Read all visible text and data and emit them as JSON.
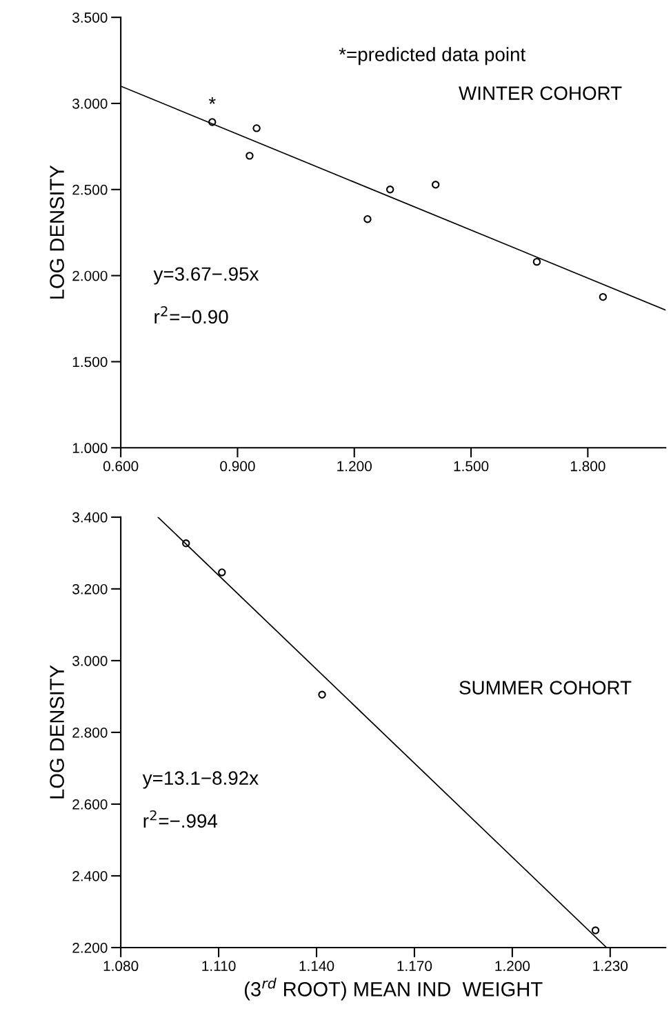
{
  "chart_data": [
    {
      "type": "scatter",
      "ylabel": "LOG DENSITY",
      "xlim": [
        0.6,
        2.0
      ],
      "ylim": [
        1.0,
        3.5
      ],
      "xticks": [
        {
          "value": 0.6,
          "label": "0.600"
        },
        {
          "value": 0.9,
          "label": "0.900"
        },
        {
          "value": 1.2,
          "label": "1.200"
        },
        {
          "value": 1.5,
          "label": "1.500"
        },
        {
          "value": 1.8,
          "label": "1.800"
        }
      ],
      "yticks": [
        {
          "value": 1.0,
          "label": "1.000"
        },
        {
          "value": 1.5,
          "label": "1.500"
        },
        {
          "value": 2.0,
          "label": "2.000"
        },
        {
          "value": 2.5,
          "label": "2.500"
        },
        {
          "value": 3.0,
          "label": "3.000"
        },
        {
          "value": 3.5,
          "label": "3.500"
        }
      ],
      "grid": false,
      "series": [
        {
          "type": "scatter",
          "color": "#000000",
          "marker": "circle",
          "x": [
            0.835,
            0.931,
            0.949,
            1.234,
            1.292,
            1.409,
            1.669,
            1.839
          ],
          "values": [
            2.892,
            2.696,
            2.856,
            2.328,
            2.5,
            2.528,
            2.08,
            1.876
          ]
        },
        {
          "type": "line",
          "color": "#000000",
          "marker": "none",
          "line_style": "solid",
          "x": [
            0.6,
            2.0
          ],
          "values": [
            3.1,
            1.8
          ]
        }
      ],
      "annotations": [
        {
          "text": "*",
          "x": 0.835,
          "y": 2.892
        },
        "*=predicted data point",
        "WINTER COHORT",
        "y=3.67−.95x",
        "r$^{2}$=−0.90"
      ]
    },
    {
      "type": "scatter",
      "ylabel": "LOG DENSITY",
      "xlabel": "(3$^{rd}$ ROOT) MEAN IND  WEIGHT",
      "xlim": [
        1.08,
        1.247
      ],
      "ylim": [
        2.2,
        3.4
      ],
      "xticks": [
        {
          "value": 1.08,
          "label": "1.080"
        },
        {
          "value": 1.11,
          "label": "1.110"
        },
        {
          "value": 1.14,
          "label": "1.140"
        },
        {
          "value": 1.17,
          "label": "1.170"
        },
        {
          "value": 1.2,
          "label": "1.200"
        },
        {
          "value": 1.23,
          "label": "1.230"
        }
      ],
      "yticks": [
        {
          "value": 2.2,
          "label": "2.200"
        },
        {
          "value": 2.4,
          "label": "2.400"
        },
        {
          "value": 2.6,
          "label": "2.600"
        },
        {
          "value": 2.8,
          "label": "2.800"
        },
        {
          "value": 3.0,
          "label": "3.000"
        },
        {
          "value": 3.2,
          "label": "3.200"
        },
        {
          "value": 3.4,
          "label": "3.400"
        }
      ],
      "grid": false,
      "series": [
        {
          "type": "scatter",
          "color": "#000000",
          "marker": "circle",
          "x": [
            1.1,
            1.111,
            1.1417,
            1.2255
          ],
          "values": [
            3.327,
            3.246,
            2.905,
            2.248
          ]
        },
        {
          "type": "line",
          "color": "#000000",
          "marker": "none",
          "line_style": "solid",
          "x": [
            1.0914,
            1.2289
          ],
          "values": [
            3.4,
            2.2
          ]
        }
      ],
      "annotations": [
        "SUMMER COHORT",
        "y=13.1−8.92x",
        "r$^{2}$=−.994"
      ]
    }
  ]
}
